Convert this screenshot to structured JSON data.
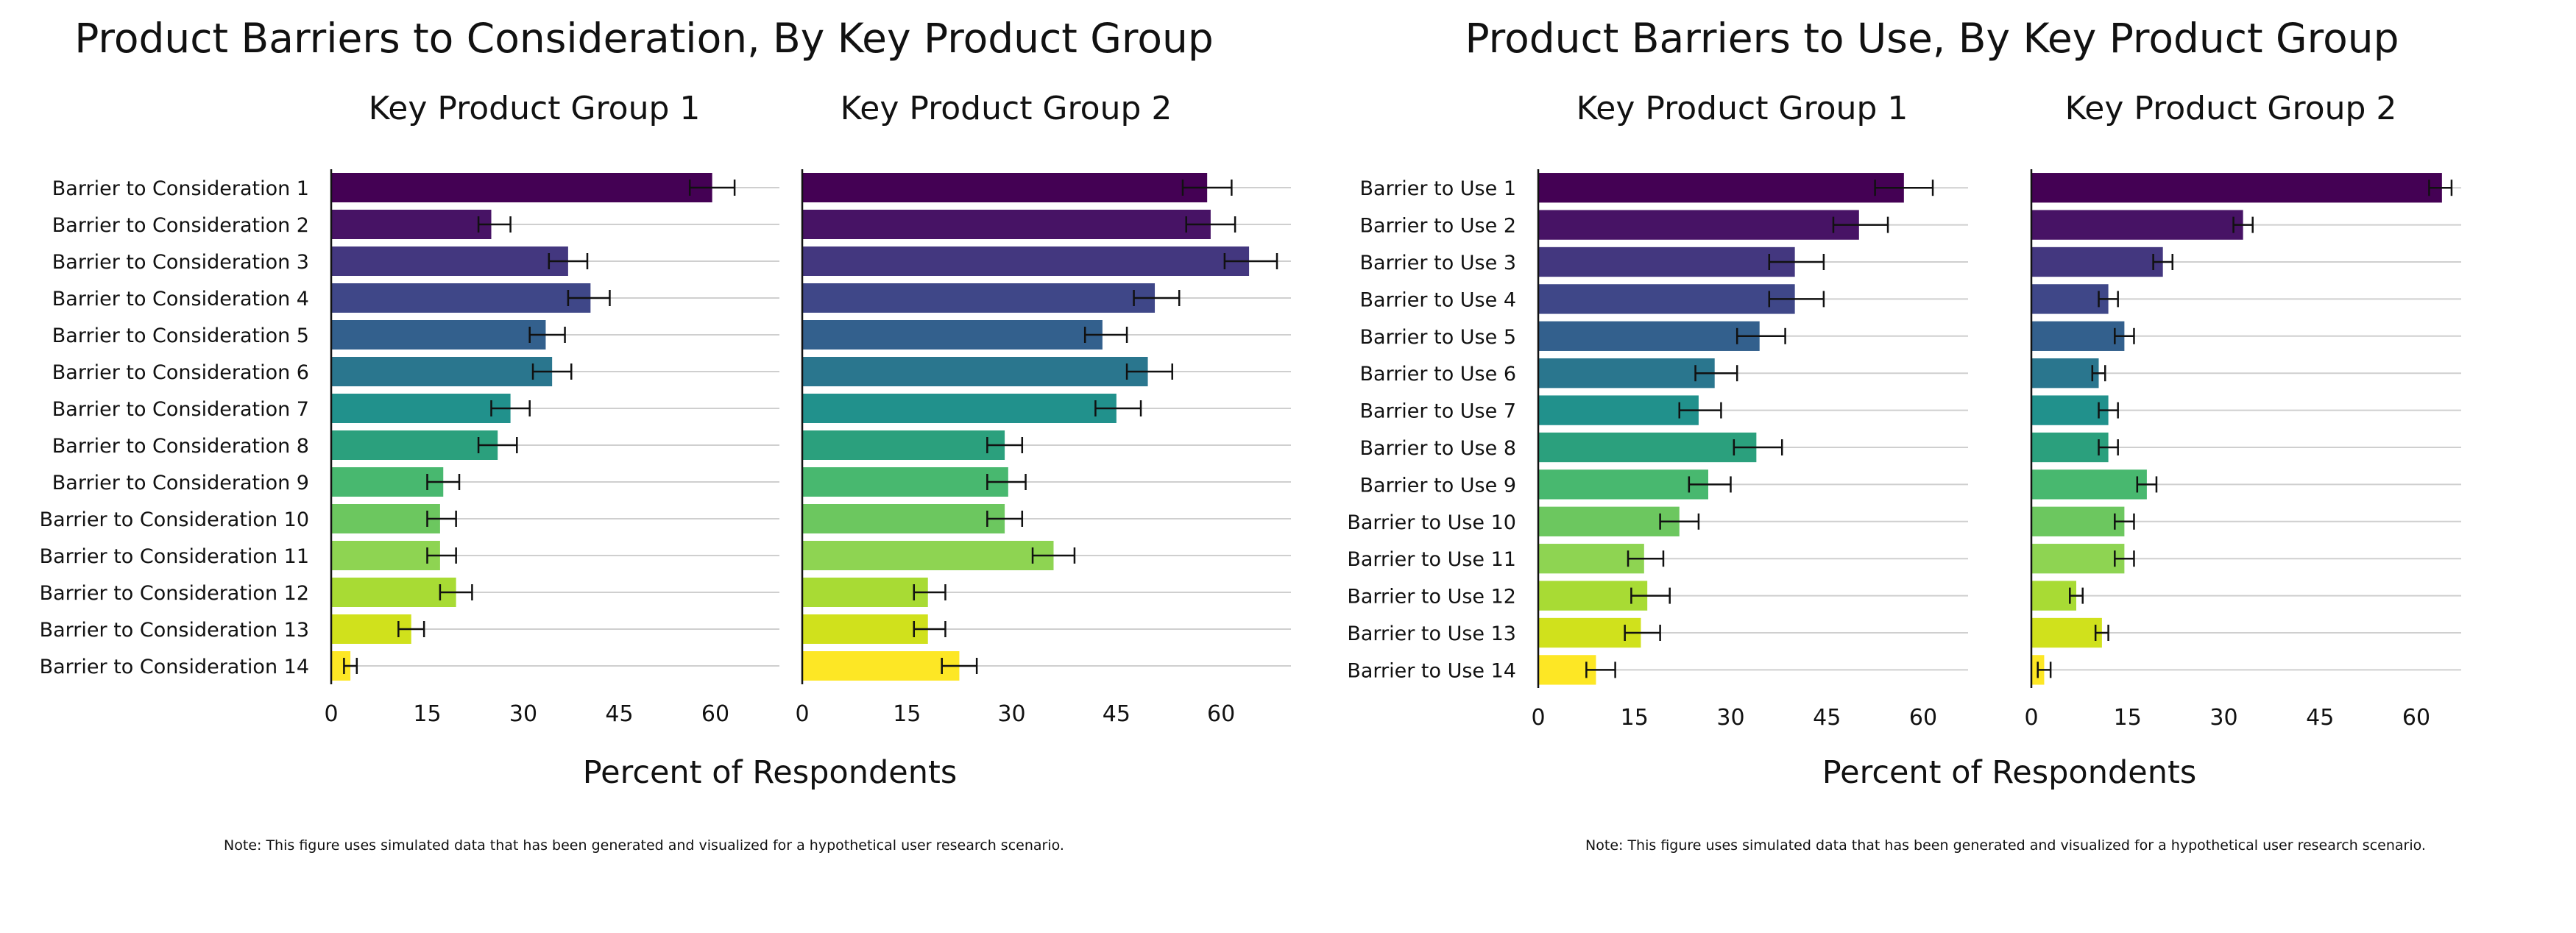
{
  "figures": [
    {
      "title": "Product Barriers to Consideration, By Key Product Group",
      "xlabel": "Percent of Respondents",
      "note": "Note: This figure uses simulated data that has been generated and visualized for a hypothetical user research scenario."
    },
    {
      "title": "Product Barriers to Use, By Key Product Group",
      "xlabel": "Percent of Respondents",
      "note": "Note: This figure uses simulated data that has been generated and visualized for a hypothetical user research scenario."
    }
  ],
  "chart_data": [
    {
      "type": "bar",
      "orientation": "horizontal",
      "title": "Key Product Group 1",
      "figure_title": "Product Barriers to Consideration, By Key Product Group",
      "xlabel": "Percent of Respondents",
      "xlim": [
        0,
        70
      ],
      "xticks": [
        0,
        15,
        30,
        45,
        60
      ],
      "grid": "horizontal",
      "categories": [
        "Barrier to Consideration 1",
        "Barrier to Consideration 2",
        "Barrier to Consideration 3",
        "Barrier to Consideration 4",
        "Barrier to Consideration 5",
        "Barrier to Consideration 6",
        "Barrier to Consideration 7",
        "Barrier to Consideration 8",
        "Barrier to Consideration 9",
        "Barrier to Consideration 10",
        "Barrier to Consideration 11",
        "Barrier to Consideration 12",
        "Barrier to Consideration 13",
        "Barrier to Consideration 14"
      ],
      "values": [
        59.5,
        25,
        37,
        40.5,
        33.5,
        34.5,
        28,
        26,
        17.5,
        17,
        17,
        19.5,
        12.5,
        3
      ],
      "error_low": [
        56,
        23,
        34,
        37,
        31,
        31.5,
        25,
        23,
        15,
        15,
        15,
        17,
        10.5,
        2
      ],
      "error_high": [
        63,
        28,
        40,
        43.5,
        36.5,
        37.5,
        31,
        29,
        20,
        19.5,
        19.5,
        22,
        14.5,
        4
      ],
      "colors": [
        "#440154",
        "#471365",
        "#43377f",
        "#3f4788",
        "#33608d",
        "#2a768e",
        "#21918c",
        "#2ba07d",
        "#48b86f",
        "#6cc75f",
        "#8ed452",
        "#a8db34",
        "#d0e11c",
        "#fde725"
      ]
    },
    {
      "type": "bar",
      "orientation": "horizontal",
      "title": "Key Product Group 2",
      "figure_title": "Product Barriers to Consideration, By Key Product Group",
      "xlabel": "Percent of Respondents",
      "xlim": [
        0,
        70
      ],
      "xticks": [
        0,
        15,
        30,
        45,
        60
      ],
      "grid": "horizontal",
      "categories": [
        "Barrier to Consideration 1",
        "Barrier to Consideration 2",
        "Barrier to Consideration 3",
        "Barrier to Consideration 4",
        "Barrier to Consideration 5",
        "Barrier to Consideration 6",
        "Barrier to Consideration 7",
        "Barrier to Consideration 8",
        "Barrier to Consideration 9",
        "Barrier to Consideration 10",
        "Barrier to Consideration 11",
        "Barrier to Consideration 12",
        "Barrier to Consideration 13",
        "Barrier to Consideration 14"
      ],
      "values": [
        58,
        58.5,
        64,
        50.5,
        43,
        49.5,
        45,
        29,
        29.5,
        29,
        36,
        18,
        18,
        22.5
      ],
      "error_low": [
        54.5,
        55,
        60.5,
        47.5,
        40.5,
        46.5,
        42,
        26.5,
        26.5,
        26.5,
        33,
        16,
        16,
        20
      ],
      "error_high": [
        61.5,
        62,
        68,
        54,
        46.5,
        53,
        48.5,
        31.5,
        32,
        31.5,
        39,
        20.5,
        20.5,
        25
      ],
      "colors": [
        "#440154",
        "#471365",
        "#43377f",
        "#3f4788",
        "#33608d",
        "#2a768e",
        "#21918c",
        "#2ba07d",
        "#48b86f",
        "#6cc75f",
        "#8ed452",
        "#a8db34",
        "#d0e11c",
        "#fde725"
      ]
    },
    {
      "type": "bar",
      "orientation": "horizontal",
      "title": "Key Product Group 1",
      "figure_title": "Product Barriers to Use, By Key Product Group",
      "xlabel": "Percent of Respondents",
      "xlim": [
        0,
        67
      ],
      "xticks": [
        0,
        15,
        30,
        45,
        60
      ],
      "grid": "horizontal",
      "categories": [
        "Barrier to Use 1",
        "Barrier to Use 2",
        "Barrier to Use 3",
        "Barrier to Use 4",
        "Barrier to Use 5",
        "Barrier to Use 6",
        "Barrier to Use 7",
        "Barrier to Use 8",
        "Barrier to Use 9",
        "Barrier to Use 10",
        "Barrier to Use 11",
        "Barrier to Use 12",
        "Barrier to Use 13",
        "Barrier to Use 14"
      ],
      "values": [
        57,
        50,
        40,
        40,
        34.5,
        27.5,
        25,
        34,
        26.5,
        22,
        16.5,
        17,
        16,
        9
      ],
      "error_low": [
        52.5,
        46,
        36,
        36,
        31,
        24.5,
        22,
        30.5,
        23.5,
        19,
        14,
        14.5,
        13.5,
        7.5
      ],
      "error_high": [
        61.5,
        54.5,
        44.5,
        44.5,
        38.5,
        31,
        28.5,
        38,
        30,
        25,
        19.5,
        20.5,
        19,
        12
      ],
      "colors": [
        "#440154",
        "#471365",
        "#43377f",
        "#3f4788",
        "#33608d",
        "#2a768e",
        "#21918c",
        "#2ba07d",
        "#48b86f",
        "#6cc75f",
        "#8ed452",
        "#a8db34",
        "#d0e11c",
        "#fde725"
      ]
    },
    {
      "type": "bar",
      "orientation": "horizontal",
      "title": "Key Product Group 2",
      "figure_title": "Product Barriers to Use, By Key Product Group",
      "xlabel": "Percent of Respondents",
      "xlim": [
        0,
        67
      ],
      "xticks": [
        0,
        15,
        30,
        45,
        60
      ],
      "grid": "horizontal",
      "categories": [
        "Barrier to Use 1",
        "Barrier to Use 2",
        "Barrier to Use 3",
        "Barrier to Use 4",
        "Barrier to Use 5",
        "Barrier to Use 6",
        "Barrier to Use 7",
        "Barrier to Use 8",
        "Barrier to Use 9",
        "Barrier to Use 10",
        "Barrier to Use 11",
        "Barrier to Use 12",
        "Barrier to Use 13",
        "Barrier to Use 14"
      ],
      "values": [
        64,
        33,
        20.5,
        12,
        14.5,
        10.5,
        12,
        12,
        18,
        14.5,
        14.5,
        7,
        11,
        2
      ],
      "error_low": [
        62,
        31.5,
        19,
        10.5,
        13,
        9.5,
        10.5,
        10.5,
        16.5,
        13,
        13,
        6,
        10,
        1
      ],
      "error_high": [
        65.5,
        34.5,
        22,
        13.5,
        16,
        11.5,
        13.5,
        13.5,
        19.5,
        16,
        16,
        8,
        12,
        3
      ],
      "colors": [
        "#440154",
        "#471365",
        "#43377f",
        "#3f4788",
        "#33608d",
        "#2a768e",
        "#21918c",
        "#2ba07d",
        "#48b86f",
        "#6cc75f",
        "#8ed452",
        "#a8db34",
        "#d0e11c",
        "#fde725"
      ]
    }
  ]
}
